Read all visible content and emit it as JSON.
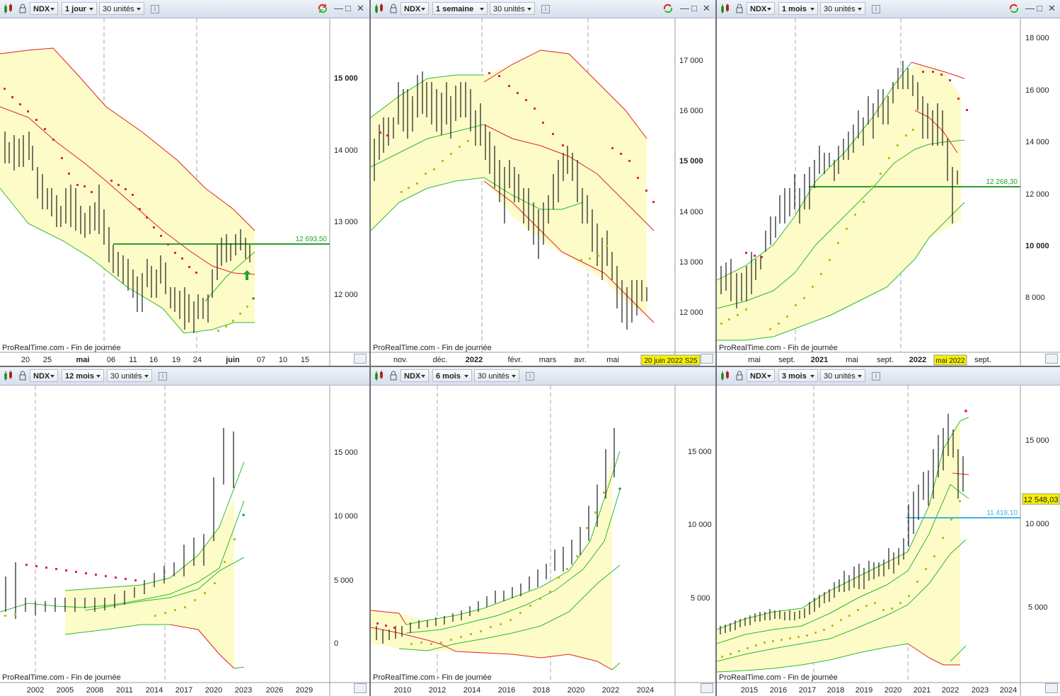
{
  "footer": "ProRealTime.com - Fin de journée",
  "colors": {
    "band": "#fdfcc9",
    "green": "#2eb82e",
    "red": "#e02020",
    "sar_red": "#e0205a",
    "sar_yellow": "#b7c40c",
    "level_green": "#2a9d2a",
    "level_blue": "#3fb3e6",
    "highlight": "#f5f000"
  },
  "panels": [
    {
      "symbol": "NDX",
      "period": "1 jour",
      "units": "30 unités",
      "level_label": "12 693,50",
      "y_ticks": [
        "15 000",
        "14 000",
        "13 000",
        "12 000"
      ],
      "x_ticks": [
        "20",
        "25",
        "mai",
        "06",
        "11",
        "16",
        "19",
        "24",
        "juin",
        "07",
        "10",
        "15"
      ],
      "icons": [
        "chart-type-icon",
        "lock-icon",
        "sync-icon"
      ]
    },
    {
      "symbol": "NDX",
      "period": "1 semaine",
      "units": "30 unités",
      "date_badge": "20 juin 2022 S25",
      "y_ticks": [
        "17 000",
        "16 000",
        "15 000",
        "14 000",
        "13 000",
        "12 000"
      ],
      "x_ticks": [
        "nov.",
        "déc.",
        "2022",
        "févr.",
        "mars",
        "avr.",
        "mai"
      ]
    },
    {
      "symbol": "NDX",
      "period": "1 mois",
      "units": "30 unités",
      "level_label": "12 268,30",
      "date_badge": "mai 2022",
      "y_ticks": [
        "18 000",
        "16 000",
        "14 000",
        "12 000",
        "10 000",
        "8 000"
      ],
      "x_ticks": [
        "mai",
        "sept.",
        "2021",
        "mai",
        "sept.",
        "2022",
        "sept."
      ]
    },
    {
      "symbol": "NDX",
      "period": "12 mois",
      "units": "30 unités",
      "y_ticks": [
        "15 000",
        "10 000",
        "5 000",
        "0"
      ],
      "x_ticks": [
        "2002",
        "2005",
        "2008",
        "2011",
        "2014",
        "2017",
        "2020",
        "2023",
        "2026",
        "2029"
      ]
    },
    {
      "symbol": "NDX",
      "period": "6 mois",
      "units": "30 unités",
      "y_ticks": [
        "15 000",
        "10 000",
        "5 000"
      ],
      "x_ticks": [
        "2010",
        "2012",
        "2014",
        "2016",
        "2018",
        "2020",
        "2022",
        "2024"
      ]
    },
    {
      "symbol": "NDX",
      "period": "3 mois",
      "units": "30 unités",
      "level_label": "11 418,10",
      "price_badge": "12 548,03",
      "y_ticks": [
        "15 000",
        "10 000",
        "5 000"
      ],
      "x_ticks": [
        "2015",
        "2016",
        "2017",
        "2018",
        "2019",
        "2020",
        "2021",
        "2022",
        "2023",
        "2024"
      ]
    }
  ]
}
